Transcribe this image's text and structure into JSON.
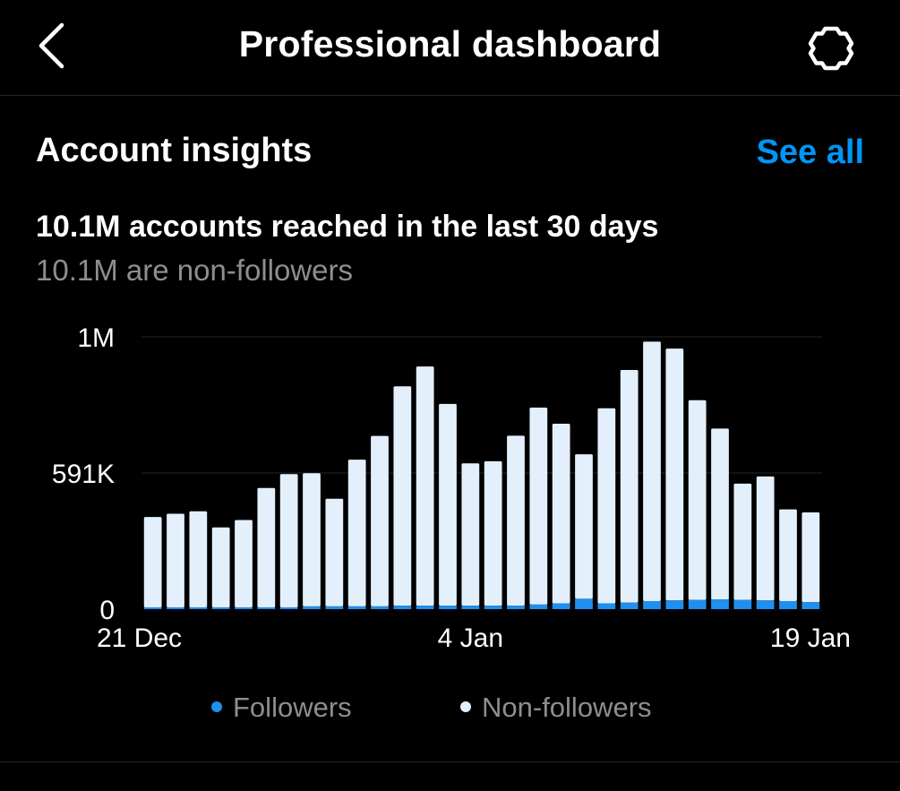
{
  "header": {
    "title": "Professional dashboard",
    "back_icon": "chevron-left-icon",
    "settings_icon": "gear-icon"
  },
  "insights": {
    "title": "Account insights",
    "see_all_label": "See all",
    "reach_headline": "10.1M accounts reached in the last 30 days",
    "reach_sub": "10.1M are non-followers"
  },
  "legend": {
    "followers": "Followers",
    "non_followers": "Non-followers"
  },
  "colors": {
    "accent": "#0095f6",
    "followers": "#1f8ff0",
    "non_followers": "#e3f0fb",
    "grid": "#262626",
    "muted_text": "#8e8e8e"
  },
  "chart_data": {
    "type": "bar",
    "stacked": true,
    "x_tick_labels": [
      "21 Dec",
      "4 Jan",
      "19 Jan"
    ],
    "y_tick_labels": [
      "0",
      "591K",
      "1M"
    ],
    "y_tick_values": [
      0,
      591000,
      1182000
    ],
    "ylim": [
      0,
      1182000
    ],
    "grid": true,
    "legend_position": "bottom",
    "series": [
      {
        "name": "Followers",
        "values": [
          8000,
          8000,
          8000,
          8000,
          8000,
          8000,
          8000,
          12000,
          12000,
          12000,
          12000,
          15000,
          15000,
          15000,
          15000,
          15000,
          15000,
          20000,
          25000,
          45000,
          25000,
          28000,
          35000,
          38000,
          40000,
          42000,
          40000,
          38000,
          35000,
          30000
        ],
        "color": "#1f8ff0"
      },
      {
        "name": "Non-followers",
        "values": [
          392000,
          406000,
          417000,
          347000,
          379000,
          518000,
          578000,
          578000,
          467000,
          637000,
          740000,
          952000,
          1038000,
          876000,
          618000,
          627000,
          738000,
          855000,
          780000,
          627000,
          847000,
          1010000,
          1126000,
          1093000,
          867000,
          742000,
          505000,
          538000,
          398000,
          390000
        ],
        "color": "#e3f0fb"
      }
    ]
  }
}
